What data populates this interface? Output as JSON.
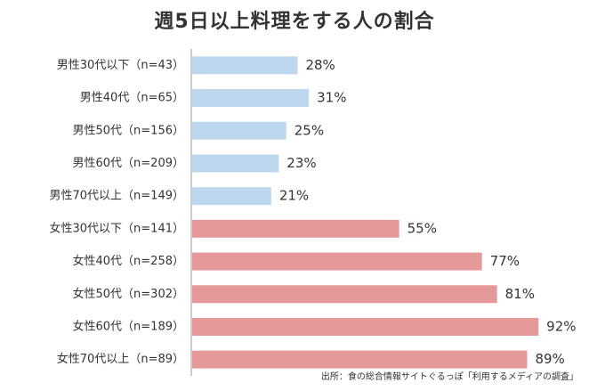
{
  "chart_data": {
    "type": "bar",
    "orientation": "horizontal",
    "title": "週5日以上料理をする人の割合",
    "source": "出所：食の総合情報サイトぐるっぽ「利用するメディアの調査」",
    "categories": [
      "男性30代以下（n=43）",
      "男性40代（n=65）",
      "男性50代（n=156）",
      "男性60代（n=209）",
      "男性70代以上（n=149）",
      "女性30代以下（n=141）",
      "女性40代（n=258）",
      "女性50代（n=302）",
      "女性60代（n=189）",
      "女性70代以上（n=89）"
    ],
    "values": [
      28,
      31,
      25,
      23,
      21,
      55,
      77,
      81,
      92,
      89
    ],
    "value_labels": [
      "28%",
      "31%",
      "25%",
      "23%",
      "21%",
      "55%",
      "77%",
      "81%",
      "92%",
      "89%"
    ],
    "xlim": [
      0,
      100
    ],
    "grid": false,
    "colors": {
      "male": "#bdd7ee",
      "female": "#e6999b",
      "axis": "#999999",
      "text": "#333333"
    },
    "bar_colors": [
      "male",
      "male",
      "male",
      "male",
      "male",
      "female",
      "female",
      "female",
      "female",
      "female"
    ]
  }
}
